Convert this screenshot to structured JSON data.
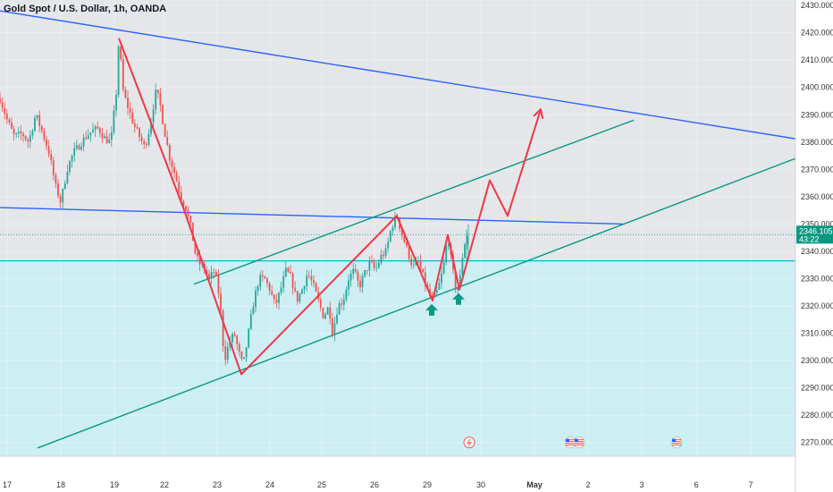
{
  "chart_data": {
    "type": "candlestick",
    "title": "Gold Spot / U.S. Dollar, 1h, OANDA",
    "ylim": [
      2265,
      2432
    ],
    "y_ticks": [
      "2430.000",
      "2420.000",
      "2410.000",
      "2400.000",
      "2390.000",
      "2380.000",
      "2370.000",
      "2360.000",
      "2350.000",
      "2340.000",
      "2330.000",
      "2320.000",
      "2310.000",
      "2300.000",
      "2290.000",
      "2280.000",
      "2270.000"
    ],
    "y_tick_values": [
      2430,
      2420,
      2410,
      2400,
      2390,
      2380,
      2370,
      2360,
      2350,
      2340,
      2330,
      2320,
      2310,
      2300,
      2290,
      2280,
      2270
    ],
    "x_ticks": [
      "17",
      "18",
      "19",
      "22",
      "23",
      "24",
      "25",
      "26",
      "29",
      "30",
      "May",
      "2",
      "3",
      "6",
      "7"
    ],
    "x_tick_positions": [
      8,
      68,
      128,
      184,
      243,
      302,
      360,
      419,
      478,
      538,
      598,
      658,
      718,
      779,
      840
    ],
    "last_price": "2346.105",
    "countdown": "43:22",
    "support_level": 2336.5,
    "grid": true,
    "colors": {
      "up": "#26a69a",
      "down": "#ef5350",
      "trendline_blue": "#2962ff",
      "channel_teal": "#089981",
      "zigzag_red": "#f23645",
      "zone_fill": "#cdeef3",
      "upper_area": "#e4e6ea",
      "support_line": "#00bcd4",
      "price_label_bg": "#089981"
    },
    "annotations": {
      "arrows_up": [
        [
          483,
          2322
        ],
        [
          513,
          2326
        ]
      ],
      "zigzag_path": [
        [
          133,
          2418
        ],
        [
          205,
          2356
        ],
        [
          270,
          2295
        ],
        [
          444,
          2353
        ],
        [
          484,
          2322
        ],
        [
          501,
          2346
        ],
        [
          514,
          2326
        ],
        [
          548,
          2366
        ],
        [
          568,
          2353
        ],
        [
          605,
          2392
        ]
      ],
      "descending_line_top": [
        [
          0,
          2428
        ],
        [
          932,
          2379
        ]
      ],
      "descending_line_mid": [
        [
          0,
          2356
        ],
        [
          697,
          2350
        ]
      ],
      "channel_upper": [
        [
          217,
          2328
        ],
        [
          709,
          2388
        ]
      ],
      "channel_lower": [
        [
          42,
          2268
        ],
        [
          890,
          2374
        ]
      ],
      "icons": [
        {
          "name": "lightning-event-icon",
          "x": 525,
          "y": 2272
        },
        {
          "name": "us-flag-event-icon",
          "x": 638,
          "y": 2272
        },
        {
          "name": "us-flag-event-icon",
          "x": 648,
          "y": 2272
        },
        {
          "name": "us-flag-event-icon",
          "x": 757,
          "y": 2272
        }
      ]
    },
    "price_path": [
      [
        0,
        2396
      ],
      [
        8,
        2388
      ],
      [
        16,
        2382
      ],
      [
        25,
        2383
      ],
      [
        32,
        2380
      ],
      [
        40,
        2390
      ],
      [
        47,
        2384
      ],
      [
        55,
        2376
      ],
      [
        62,
        2364
      ],
      [
        68,
        2358
      ],
      [
        75,
        2370
      ],
      [
        82,
        2376
      ],
      [
        89,
        2379
      ],
      [
        96,
        2382
      ],
      [
        103,
        2384
      ],
      [
        110,
        2385
      ],
      [
        118,
        2381
      ],
      [
        124,
        2380
      ],
      [
        130,
        2398
      ],
      [
        133,
        2418
      ],
      [
        138,
        2398
      ],
      [
        144,
        2392
      ],
      [
        150,
        2386
      ],
      [
        156,
        2382
      ],
      [
        162,
        2378
      ],
      [
        168,
        2386
      ],
      [
        174,
        2398
      ],
      [
        178,
        2396
      ],
      [
        184,
        2384
      ],
      [
        190,
        2374
      ],
      [
        196,
        2368
      ],
      [
        202,
        2360
      ],
      [
        208,
        2356
      ],
      [
        214,
        2348
      ],
      [
        218,
        2340
      ],
      [
        222,
        2336
      ],
      [
        228,
        2334
      ],
      [
        234,
        2330
      ],
      [
        240,
        2333
      ],
      [
        246,
        2322
      ],
      [
        251,
        2300
      ],
      [
        256,
        2306
      ],
      [
        262,
        2310
      ],
      [
        268,
        2302
      ],
      [
        272,
        2298
      ],
      [
        278,
        2310
      ],
      [
        284,
        2322
      ],
      [
        290,
        2330
      ],
      [
        296,
        2330
      ],
      [
        302,
        2326
      ],
      [
        308,
        2320
      ],
      [
        314,
        2326
      ],
      [
        320,
        2333
      ],
      [
        326,
        2330
      ],
      [
        332,
        2322
      ],
      [
        338,
        2326
      ],
      [
        344,
        2332
      ],
      [
        350,
        2328
      ],
      [
        356,
        2322
      ],
      [
        362,
        2316
      ],
      [
        368,
        2320
      ],
      [
        372,
        2310
      ],
      [
        378,
        2320
      ],
      [
        384,
        2322
      ],
      [
        390,
        2330
      ],
      [
        396,
        2333
      ],
      [
        402,
        2327
      ],
      [
        408,
        2332
      ],
      [
        414,
        2336
      ],
      [
        420,
        2333
      ],
      [
        426,
        2338
      ],
      [
        432,
        2340
      ],
      [
        438,
        2349
      ],
      [
        444,
        2353
      ],
      [
        450,
        2346
      ],
      [
        456,
        2340
      ],
      [
        462,
        2334
      ],
      [
        468,
        2336
      ],
      [
        474,
        2330
      ],
      [
        480,
        2324
      ],
      [
        484,
        2322
      ],
      [
        490,
        2326
      ],
      [
        496,
        2334
      ],
      [
        501,
        2346
      ],
      [
        505,
        2336
      ],
      [
        510,
        2326
      ],
      [
        514,
        2328
      ],
      [
        518,
        2340
      ],
      [
        522,
        2346
      ],
      [
        525,
        2346
      ]
    ]
  }
}
